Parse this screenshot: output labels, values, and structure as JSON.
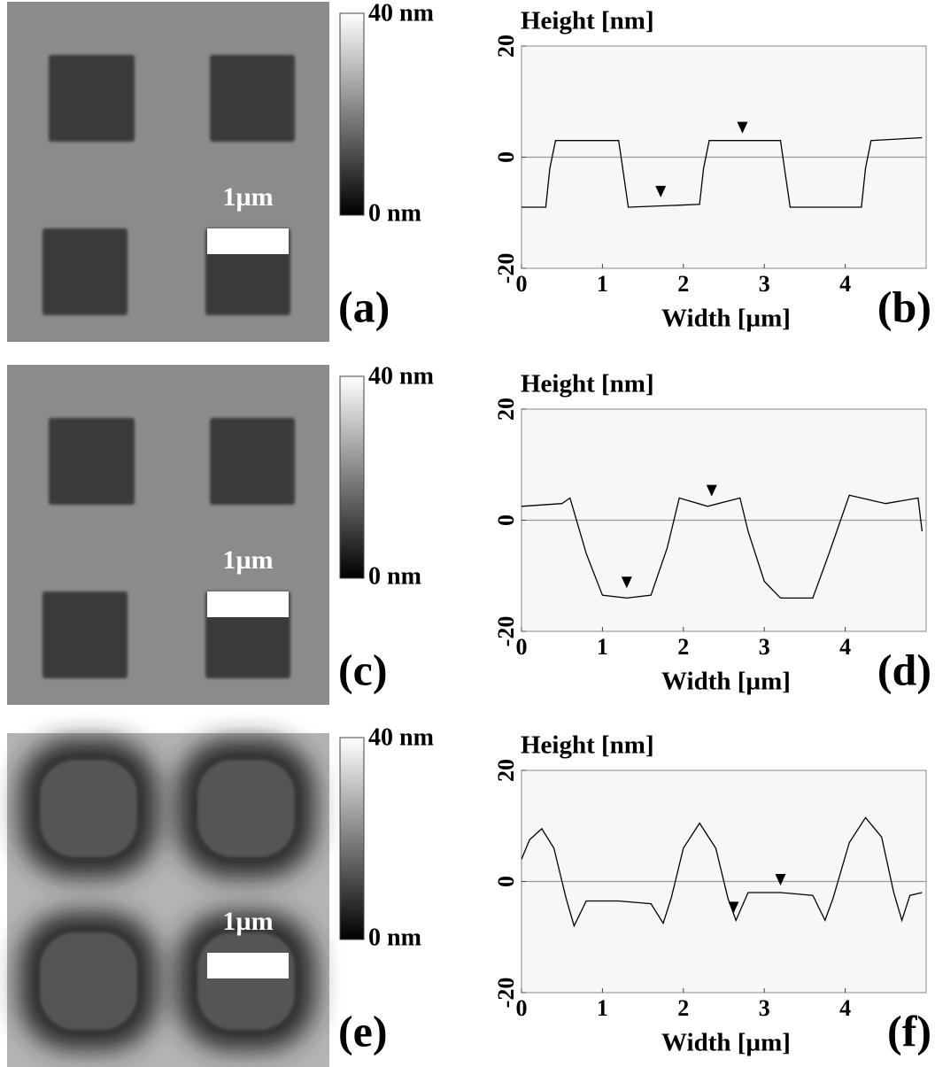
{
  "images": [
    {
      "scale_bar": "1µm",
      "colorbar_max": "40 nm",
      "colorbar_min": "0 nm",
      "panel_label": "(a)",
      "style": "sharp"
    },
    {
      "scale_bar": "1µm",
      "colorbar_max": "40 nm",
      "colorbar_min": "0 nm",
      "panel_label": "(c)",
      "style": "sharp"
    },
    {
      "scale_bar": "1µm",
      "colorbar_max": "40 nm",
      "colorbar_min": "0 nm",
      "panel_label": "(e)",
      "style": "blurred"
    }
  ],
  "chart_data": [
    {
      "type": "line",
      "title": "Height [nm]",
      "x_label": "Width [µm]",
      "panel_label": "(b)",
      "color": "#000000",
      "x": [
        0,
        0.3,
        0.35,
        0.42,
        1.2,
        1.25,
        1.32,
        2.2,
        2.25,
        2.32,
        3.2,
        3.25,
        3.32,
        4.2,
        4.25,
        4.32,
        4.95
      ],
      "values": [
        -9,
        -9,
        -2,
        3,
        3,
        -2,
        -9,
        -8.5,
        -2,
        3,
        3,
        -2,
        -9,
        -9,
        -2,
        3,
        3.5
      ],
      "markers": [
        {
          "x": 1.72,
          "y": -8.5
        },
        {
          "x": 2.73,
          "y": 3
        }
      ],
      "reference_line": 0,
      "xlim": [
        0,
        5
      ],
      "ylim": [
        -20,
        20
      ],
      "xticks": [
        0,
        1,
        2,
        3,
        4
      ],
      "yticks": [
        -20,
        0,
        20
      ]
    },
    {
      "type": "line",
      "title": "Height [nm]",
      "x_label": "Width [µm]",
      "panel_label": "(d)",
      "color": "#000000",
      "x": [
        0,
        0.5,
        0.6,
        0.8,
        1.0,
        1.3,
        1.6,
        1.8,
        1.95,
        2.3,
        2.7,
        2.8,
        3.0,
        3.2,
        3.6,
        3.8,
        4.05,
        4.5,
        4.9,
        4.95
      ],
      "values": [
        2.5,
        3,
        4,
        -6,
        -13.5,
        -14,
        -13.5,
        -5,
        4,
        2.5,
        4,
        -2,
        -11,
        -14,
        -14,
        -6,
        4.5,
        3,
        4,
        -2
      ],
      "markers": [
        {
          "x": 1.3,
          "y": -13.5
        },
        {
          "x": 2.35,
          "y": 3
        }
      ],
      "reference_line": 0,
      "xlim": [
        0,
        5
      ],
      "ylim": [
        -20,
        20
      ],
      "xticks": [
        0,
        1,
        2,
        3,
        4
      ],
      "yticks": [
        -20,
        0,
        20
      ]
    },
    {
      "type": "line",
      "title": "Height [nm]",
      "x_label": "Width [µm]",
      "panel_label": "(f)",
      "color": "#000000",
      "x": [
        0,
        0.1,
        0.25,
        0.4,
        0.55,
        0.65,
        0.8,
        1.2,
        1.6,
        1.75,
        1.85,
        2.0,
        2.2,
        2.4,
        2.55,
        2.65,
        2.8,
        3.2,
        3.6,
        3.75,
        3.85,
        4.05,
        4.25,
        4.45,
        4.6,
        4.7,
        4.8,
        4.95
      ],
      "values": [
        4,
        7.5,
        9.5,
        6,
        -3,
        -8,
        -3.5,
        -3.5,
        -4,
        -7.5,
        -3,
        6,
        10.5,
        6,
        -3,
        -7,
        -2,
        -2,
        -2.5,
        -7,
        -3,
        7,
        11.5,
        8,
        -2,
        -7,
        -2.5,
        -2
      ],
      "markers": [
        {
          "x": 2.62,
          "y": -7
        },
        {
          "x": 3.2,
          "y": -2
        }
      ],
      "reference_line": 0,
      "xlim": [
        0,
        5
      ],
      "ylim": [
        -20,
        20
      ],
      "xticks": [
        0,
        1,
        2,
        3,
        4
      ],
      "yticks": [
        -20,
        0,
        20
      ]
    }
  ]
}
